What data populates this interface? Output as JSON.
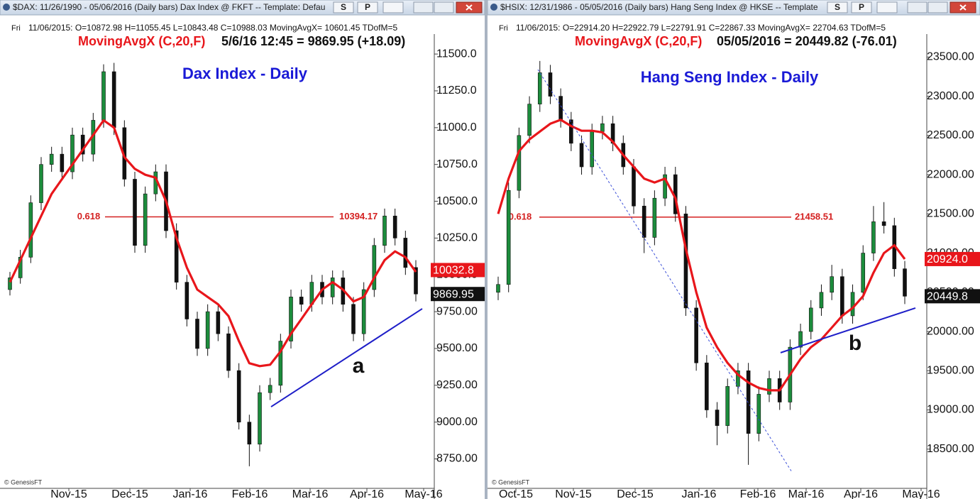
{
  "chart_data": [
    {
      "type": "candlestick",
      "window_title": "$DAX: 11/26/1990 - 05/06/2016 (Daily bars)   Dax Index @ FKFT  --  Template: Defau",
      "buttons": [
        "S",
        "P"
      ],
      "info_day": "Fri",
      "info_line": "11/06/2015: O=10872.98 H=11055.45 L=10843.48 C=10988.03 MovingAvgX= 10601.45 TDofM=5",
      "indicator": "MovingAvgX (C,20,F)",
      "last_quote": "5/6/16 12:45 = 9869.95 (+18.09)",
      "title": "Dax Index - Daily",
      "ylim": [
        8550,
        11650
      ],
      "yticks": [
        {
          "value": 11500,
          "label": "11500.0"
        },
        {
          "value": 11250,
          "label": "11250.0"
        },
        {
          "value": 11000,
          "label": "11000.0"
        },
        {
          "value": 10750,
          "label": "10750.0"
        },
        {
          "value": 10500,
          "label": "10500.0"
        },
        {
          "value": 10250,
          "label": "10250.0"
        },
        {
          "value": 10000,
          "label": "10000.0"
        },
        {
          "value": 9750,
          "label": "9750.00"
        },
        {
          "value": 9500,
          "label": "9500.00"
        },
        {
          "value": 9250,
          "label": "9250.00"
        },
        {
          "value": 9000,
          "label": "9000.00"
        },
        {
          "value": 8750,
          "label": "8750.00"
        }
      ],
      "xticks": [
        "Nov-15",
        "Dec-15",
        "Jan-16",
        "Feb-16",
        "Mar-16",
        "Apr-16",
        "May-16"
      ],
      "up_color": "#1c8c3c",
      "down_color": "#111111",
      "candles": [
        [
          9900,
          10020,
          9860,
          9980
        ],
        [
          9980,
          10170,
          9940,
          10120
        ],
        [
          10120,
          10540,
          10080,
          10490
        ],
        [
          10490,
          10800,
          10440,
          10750
        ],
        [
          10750,
          10870,
          10700,
          10820
        ],
        [
          10820,
          10870,
          10650,
          10700
        ],
        [
          10700,
          11000,
          10650,
          10950
        ],
        [
          10950,
          11000,
          10770,
          10820
        ],
        [
          10820,
          11100,
          10770,
          11050
        ],
        [
          11050,
          11430,
          11000,
          11380
        ],
        [
          11380,
          11440,
          10950,
          11000
        ],
        [
          11000,
          11050,
          10600,
          10650
        ],
        [
          10650,
          10700,
          10150,
          10200
        ],
        [
          10200,
          10600,
          10150,
          10550
        ],
        [
          10550,
          10750,
          10500,
          10700
        ],
        [
          10700,
          10750,
          10250,
          10300
        ],
        [
          10300,
          10350,
          9900,
          9950
        ],
        [
          9950,
          10000,
          9650,
          9700
        ],
        [
          9700,
          9750,
          9450,
          9500
        ],
        [
          9500,
          9800,
          9450,
          9750
        ],
        [
          9750,
          9800,
          9550,
          9600
        ],
        [
          9600,
          9650,
          9300,
          9350
        ],
        [
          9350,
          9400,
          8950,
          9000
        ],
        [
          9000,
          9050,
          8700,
          8850
        ],
        [
          8850,
          9250,
          8800,
          9200
        ],
        [
          9200,
          9300,
          9150,
          9250
        ],
        [
          9250,
          9600,
          9200,
          9550
        ],
        [
          9550,
          9900,
          9500,
          9850
        ],
        [
          9850,
          9900,
          9750,
          9800
        ],
        [
          9800,
          10000,
          9750,
          9950
        ],
        [
          9950,
          10000,
          9800,
          9850
        ],
        [
          9850,
          10030,
          9800,
          9980
        ],
        [
          9980,
          10030,
          9750,
          9800
        ],
        [
          9800,
          9850,
          9550,
          9600
        ],
        [
          9600,
          9950,
          9550,
          9900
        ],
        [
          9900,
          10250,
          9850,
          10200
        ],
        [
          10200,
          10450,
          10150,
          10400
        ],
        [
          10400,
          10450,
          10200,
          10250
        ],
        [
          10250,
          10300,
          10000,
          10050
        ],
        [
          10050,
          10100,
          9820,
          9870
        ]
      ],
      "moving_average": {
        "color": "#e8161b",
        "values": [
          9950,
          10100,
          10250,
          10400,
          10550,
          10650,
          10750,
          10850,
          10950,
          11050,
          11000,
          10800,
          10720,
          10680,
          10660,
          10500,
          10250,
          10050,
          9900,
          9850,
          9800,
          9720,
          9550,
          9400,
          9380,
          9390,
          9480,
          9600,
          9700,
          9800,
          9900,
          9950,
          9900,
          9820,
          9850,
          9980,
          10100,
          10160,
          10120,
          10020
        ]
      },
      "fib": {
        "label": "0.618",
        "value": 10394.17,
        "color": "#d42020"
      },
      "price_tags": [
        {
          "value": 10032.8,
          "color": "#e8161b"
        },
        {
          "value": 9869.95,
          "color": "#111111"
        }
      ],
      "trendlines": [
        {
          "values": [
            9104,
            9770
          ],
          "color": "#1e1ec8",
          "dashed": false
        }
      ],
      "annotation": "a",
      "watermark": "© GenesisFT"
    },
    {
      "type": "candlestick",
      "window_title": "$HSIX: 12/31/1986 - 05/05/2016 (Daily bars)   Hang Seng Index @ HKSE  --  Template",
      "buttons": [
        "S",
        "P"
      ],
      "info_day": "Fri",
      "info_line": "11/06/2015: O=22914.20 H=22922.79 L=22791.91 C=22867.33 MovingAvgX= 22704.63 TDofM=5",
      "indicator": "MovingAvgX (C,20,F)",
      "last_quote": "05/05/2016 = 20449.82 (-76.01)",
      "title": "Hang Seng Index - Daily",
      "ylim": [
        18000,
        23820
      ],
      "yticks": [
        {
          "value": 23500,
          "label": "23500.00"
        },
        {
          "value": 23000,
          "label": "23000.00"
        },
        {
          "value": 22500,
          "label": "22500.00"
        },
        {
          "value": 22000,
          "label": "22000.00"
        },
        {
          "value": 21500,
          "label": "21500.00"
        },
        {
          "value": 21000,
          "label": "21000.00"
        },
        {
          "value": 20500,
          "label": "20500.00"
        },
        {
          "value": 20000,
          "label": "20000.00"
        },
        {
          "value": 19500,
          "label": "19500.00"
        },
        {
          "value": 19000,
          "label": "19000.00"
        },
        {
          "value": 18500,
          "label": "18500.00"
        }
      ],
      "xticks": [
        "Oct-15",
        "Nov-15",
        "Dec-15",
        "Jan-16",
        "Feb-16",
        "Mar-16",
        "Apr-16",
        "May-16"
      ],
      "up_color": "#1c8c3c",
      "down_color": "#111111",
      "candles": [
        [
          20500,
          20700,
          20400,
          20600
        ],
        [
          20600,
          21900,
          20500,
          21800
        ],
        [
          21800,
          22600,
          21700,
          22500
        ],
        [
          22500,
          23000,
          22400,
          22900
        ],
        [
          22900,
          23450,
          22800,
          23300
        ],
        [
          23300,
          23400,
          22900,
          23000
        ],
        [
          23000,
          23100,
          22600,
          22700
        ],
        [
          22700,
          22800,
          22300,
          22400
        ],
        [
          22400,
          22500,
          22000,
          22100
        ],
        [
          22100,
          22650,
          22000,
          22550
        ],
        [
          22550,
          22750,
          22450,
          22650
        ],
        [
          22650,
          22750,
          22300,
          22400
        ],
        [
          22400,
          22500,
          22000,
          22100
        ],
        [
          22100,
          22200,
          21500,
          21600
        ],
        [
          21600,
          21700,
          21000,
          21200
        ],
        [
          21200,
          21800,
          21100,
          21700
        ],
        [
          21700,
          22100,
          21600,
          22000
        ],
        [
          22000,
          22100,
          21400,
          21500
        ],
        [
          21500,
          21600,
          20200,
          20300
        ],
        [
          20300,
          20400,
          19500,
          19600
        ],
        [
          19600,
          19700,
          18900,
          19000
        ],
        [
          19000,
          19100,
          18550,
          18800
        ],
        [
          18800,
          19400,
          18700,
          19300
        ],
        [
          19300,
          19600,
          19200,
          19500
        ],
        [
          19500,
          19600,
          18300,
          18700
        ],
        [
          18700,
          19300,
          18600,
          19200
        ],
        [
          19200,
          19500,
          19100,
          19400
        ],
        [
          19400,
          19500,
          19000,
          19100
        ],
        [
          19100,
          19900,
          19000,
          19800
        ],
        [
          19800,
          20100,
          19700,
          20000
        ],
        [
          20000,
          20400,
          19900,
          20300
        ],
        [
          20300,
          20600,
          20200,
          20500
        ],
        [
          20500,
          20850,
          20400,
          20700
        ],
        [
          20700,
          20800,
          20100,
          20200
        ],
        [
          20200,
          20600,
          20100,
          20500
        ],
        [
          20500,
          21100,
          20400,
          21000
        ],
        [
          21000,
          21600,
          20900,
          21400
        ],
        [
          21400,
          21650,
          21250,
          21350
        ],
        [
          21350,
          21450,
          20700,
          20800
        ],
        [
          20800,
          20900,
          20350,
          20450
        ]
      ],
      "moving_average": {
        "color": "#e8161b",
        "values": [
          21500,
          21950,
          22300,
          22450,
          22550,
          22650,
          22700,
          22620,
          22560,
          22560,
          22540,
          22420,
          22250,
          22100,
          21950,
          21900,
          21950,
          21700,
          21050,
          20500,
          20050,
          19800,
          19600,
          19450,
          19350,
          19280,
          19250,
          19250,
          19450,
          19650,
          19800,
          19900,
          20050,
          20200,
          20300,
          20450,
          20750,
          21000,
          21100,
          20924
        ]
      },
      "fib": {
        "label": "0.618",
        "value": 21458.51,
        "color": "#d42020"
      },
      "price_tags": [
        {
          "value": 20924,
          "label": "20924.0",
          "color": "#e8161b"
        },
        {
          "value": 20449.8,
          "color": "#111111"
        }
      ],
      "trendlines": [
        {
          "values": [
            23340,
            18222
          ],
          "color": "#3b4fd8",
          "dashed": true
        },
        {
          "values": [
            19730,
            20300
          ],
          "color": "#1e1ec8",
          "dashed": false
        }
      ],
      "annotation": "b",
      "watermark": "© GenesisFT"
    }
  ]
}
